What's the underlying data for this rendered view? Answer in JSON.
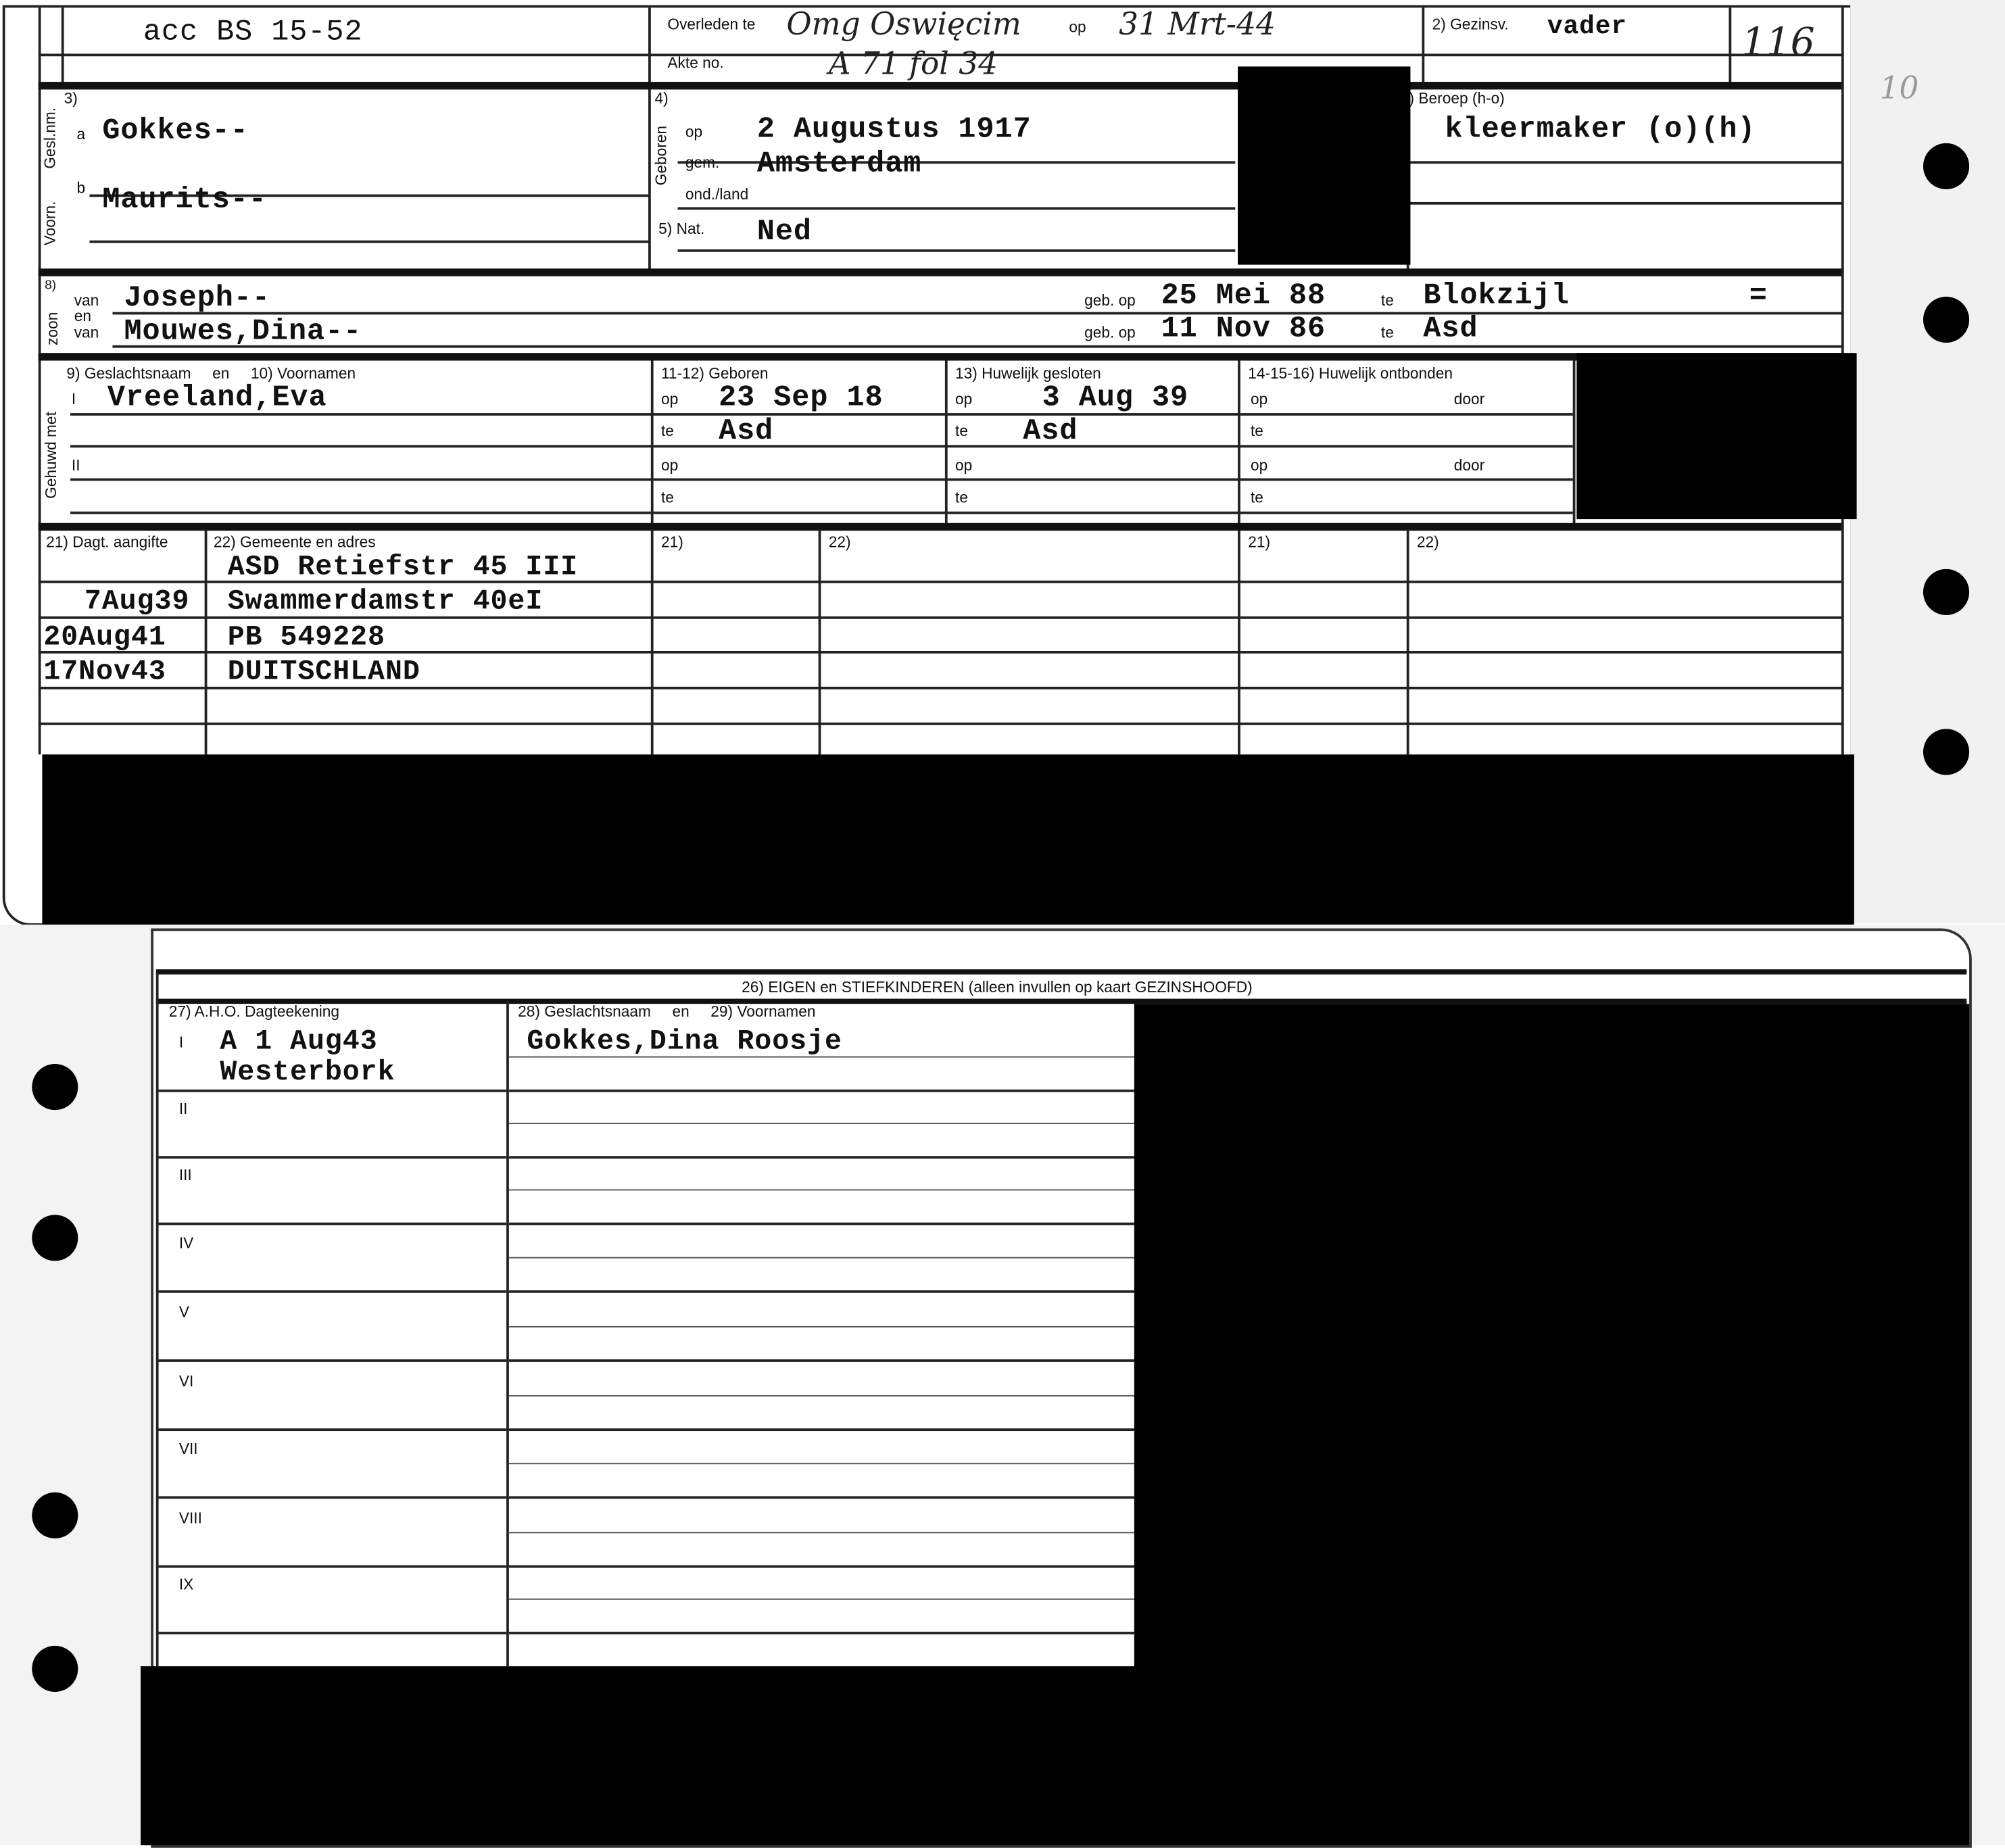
{
  "card_front": {
    "archive_no": "acc BS 15-52",
    "died_label": "Overleden te",
    "died_place": "Omg Oswięcim",
    "died_on_label": "op",
    "died_date": "31 Mrt-44",
    "deed_label": "Akte no.",
    "deed_value": "A 71 fol 34",
    "family_pos_label": "2) Gezinsv.",
    "family_pos_value": "vader",
    "margin_no": "116",
    "side_mark": "10",
    "section3_no": "3)",
    "surname_side": "Gesl.nm.",
    "given_side": "Voorn.",
    "a_label": "a",
    "b_label": "b",
    "surname": "Gokkes--",
    "given_name": "Maurits--",
    "section4_no": "4)",
    "born_side": "Geboren",
    "born_on_label": "op",
    "born_date": "2 Augustus 1917",
    "born_place_label": "gem.",
    "born_place": "Amsterdam",
    "country_label": "ond./land",
    "nat_label": "5) Nat.",
    "nat_value": "Ned",
    "occupation_label": ") Beroep (h-o)",
    "occupation": "kleermaker (o)(h)",
    "son_side": "zoon",
    "section8_no": "8)",
    "van1": "van",
    "en": "en",
    "van2": "van",
    "father": "Joseph--",
    "mother": "Mouwes,Dina--",
    "father_born_label": "geb. op",
    "father_born": "25 Mei 88",
    "father_te": "te",
    "father_place": "Blokzijl",
    "ditto": "=",
    "mother_born_label": "geb. op",
    "mother_born": "11 Nov 86",
    "mother_te": "te",
    "mother_place": "Asd",
    "married_side": "Gehuwd met",
    "spouse_header": "9) Geslachtsnaam     en     10) Voornamen",
    "spouse_I": "I",
    "spouse_II": "II",
    "spouse_name": "Vreeland,Eva",
    "born_header": "11-12) Geboren",
    "op": "op",
    "te": "te",
    "spouse_born": "23 Sep 18",
    "spouse_born_place": "Asd",
    "marriage_header": "13) Huwelijk gesloten",
    "marriage_date": "3 Aug 39",
    "marriage_place": "Asd",
    "dissolved_header": "14-15-16) Huwelijk ontbonden",
    "door": "door",
    "addr_h21": "21) Dagt. aangifte",
    "addr_h22": "22) Gemeente en adres",
    "h21": "21)",
    "h22": "22)",
    "addresses": [
      {
        "date": "",
        "address": "ASD Retiefstr 45 III"
      },
      {
        "date": "7Aug39",
        "address": "Swammerdamstr 40eI"
      },
      {
        "date": "20Aug41",
        "address": "PB 549228"
      },
      {
        "date": "17Nov43",
        "address": "DUITSCHLAND"
      }
    ]
  },
  "card_back": {
    "header": "26) EIGEN en STIEFKINDEREN (alleen invullen op kaart GEZINSHOOFD)",
    "col_aho": "27) A.H.O. Dagteekening",
    "col_name": "28) Geslachtsnaam     en     29) Voornamen",
    "rows": [
      {
        "num": "I",
        "aho": "A 1 Aug43",
        "aho2": "Westerbork",
        "name": "Gokkes,Dina Roosje"
      },
      {
        "num": "II",
        "aho": "",
        "aho2": "",
        "name": ""
      },
      {
        "num": "III",
        "aho": "",
        "aho2": "",
        "name": ""
      },
      {
        "num": "IV",
        "aho": "",
        "aho2": "",
        "name": ""
      },
      {
        "num": "V",
        "aho": "",
        "aho2": "",
        "name": ""
      },
      {
        "num": "VI",
        "aho": "",
        "aho2": "",
        "name": ""
      },
      {
        "num": "VII",
        "aho": "",
        "aho2": "",
        "name": ""
      },
      {
        "num": "VIII",
        "aho": "",
        "aho2": "",
        "name": ""
      },
      {
        "num": "IX",
        "aho": "",
        "aho2": "",
        "name": ""
      }
    ]
  }
}
